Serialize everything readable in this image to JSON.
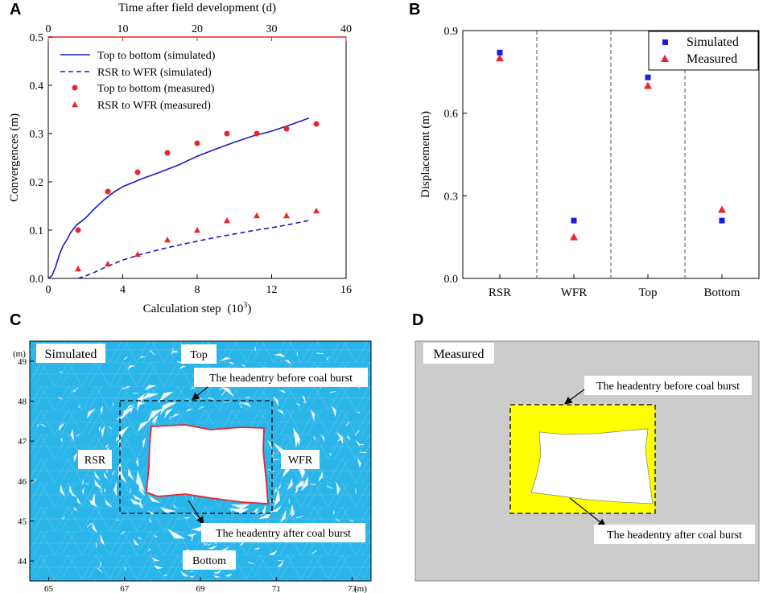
{
  "panels": {
    "A": "A",
    "B": "B",
    "C": "C",
    "D": "D"
  },
  "chart_data": [
    {
      "id": "A",
      "type": "line",
      "xlabel_prefix": "Calculation step",
      "xlabel_unit": "(10",
      "xlabel_sup": "3",
      "xlabel_close": ")",
      "ylabel": "Convergences (m)",
      "top_label": "Time after field development (d)",
      "xlim": [
        0,
        16
      ],
      "ylim": [
        0,
        0.5
      ],
      "xticks": [
        0,
        4,
        8,
        12,
        16
      ],
      "xtick_labels": [
        "0",
        "4",
        "8",
        "12",
        "16"
      ],
      "yticks": [
        0,
        0.1,
        0.2,
        0.3,
        0.4,
        0.5
      ],
      "ytick_labels": [
        "0.0",
        "0.1",
        "0.2",
        "0.3",
        "0.4",
        "0.5"
      ],
      "top_xlim": [
        0,
        40
      ],
      "top_ticks": [
        0,
        10,
        20,
        30,
        40
      ],
      "top_tick_labels": [
        "0",
        "10",
        "20",
        "30",
        "40"
      ],
      "accent_color": "#e8262c",
      "series": [
        {
          "name": "Top to bottom (simulated)",
          "style": "solid",
          "color": "#1a1ac8",
          "x": [
            0,
            0.2,
            0.4,
            0.6,
            0.8,
            1.0,
            1.2,
            1.5,
            2.0,
            2.5,
            3.0,
            3.5,
            4.0,
            4.5,
            5.0,
            6.0,
            7.0,
            8.0,
            9.0,
            10.0,
            11.0,
            12.0,
            13.0,
            14.0
          ],
          "y": [
            0,
            0.006,
            0.025,
            0.05,
            0.068,
            0.08,
            0.095,
            0.11,
            0.125,
            0.145,
            0.163,
            0.178,
            0.19,
            0.198,
            0.206,
            0.22,
            0.235,
            0.253,
            0.268,
            0.282,
            0.295,
            0.305,
            0.318,
            0.332
          ]
        },
        {
          "name": "RSR to WFR (simulated)",
          "style": "dashed",
          "color": "#1a1ac8",
          "x": [
            1.6,
            2.0,
            2.5,
            3.0,
            3.5,
            4.0,
            5.0,
            6.0,
            7.0,
            8.0,
            9.0,
            10.0,
            11.0,
            12.0,
            13.0,
            14.0
          ],
          "y": [
            0,
            0.005,
            0.013,
            0.022,
            0.03,
            0.038,
            0.05,
            0.06,
            0.069,
            0.077,
            0.085,
            0.092,
            0.099,
            0.105,
            0.112,
            0.12
          ]
        },
        {
          "name": "Top to bottom (measured)",
          "style": "circle",
          "color": "#e8262c",
          "x": [
            1.6,
            3.2,
            4.8,
            6.4,
            8.0,
            9.6,
            11.2,
            12.8,
            14.4
          ],
          "y": [
            0.1,
            0.18,
            0.22,
            0.26,
            0.28,
            0.3,
            0.3,
            0.31,
            0.32
          ]
        },
        {
          "name": "RSR to WFR (measured)",
          "style": "triangle",
          "color": "#e8262c",
          "x": [
            1.6,
            3.2,
            4.8,
            6.4,
            8.0,
            9.6,
            11.2,
            12.8,
            14.4
          ],
          "y": [
            0.02,
            0.03,
            0.05,
            0.08,
            0.1,
            0.12,
            0.13,
            0.13,
            0.14
          ]
        }
      ]
    },
    {
      "id": "B",
      "type": "scatter",
      "ylabel": "Displacement (m)",
      "categories": [
        "RSR",
        "WFR",
        "Top",
        "Bottom"
      ],
      "ylim": [
        0,
        0.9
      ],
      "yticks": [
        0,
        0.3,
        0.6,
        0.9
      ],
      "ytick_labels": [
        "0.0",
        "0.3",
        "0.6",
        "0.9"
      ],
      "series": [
        {
          "name": "Simulated",
          "marker": "square",
          "color": "#1a1ae6",
          "values": [
            0.82,
            0.21,
            0.73,
            0.21
          ]
        },
        {
          "name": "Measured",
          "marker": "triangle",
          "color": "#e8262c",
          "values": [
            0.8,
            0.15,
            0.7,
            0.25
          ]
        }
      ]
    },
    {
      "id": "C",
      "type": "other",
      "label": "Simulated",
      "unit": "(m)",
      "xlim": [
        64.5,
        73.5
      ],
      "ylim": [
        43.5,
        49.5
      ],
      "xticks": [
        65,
        67,
        69,
        71,
        73
      ],
      "xtick_labels": [
        "65",
        "67",
        "69",
        "71",
        "73"
      ],
      "yticks": [
        44,
        45,
        46,
        47,
        48,
        49
      ],
      "ytick_labels": [
        "44",
        "45",
        "46",
        "47",
        "48",
        "49"
      ],
      "annotations": {
        "top": "Top",
        "bottom": "Bottom",
        "rsr": "RSR",
        "wfr": "WFR",
        "before": "The headentry before coal burst",
        "after": "The headentry after coal burst"
      },
      "colors": {
        "background": "#29b4ea",
        "outline": "#e8262c"
      }
    },
    {
      "id": "D",
      "type": "other",
      "label": "Measured",
      "annotations": {
        "before": "The headentry before coal burst",
        "after": "The headentry after coal burst"
      },
      "colors": {
        "background": "#cccccc",
        "zone": "#ffff00"
      }
    }
  ]
}
